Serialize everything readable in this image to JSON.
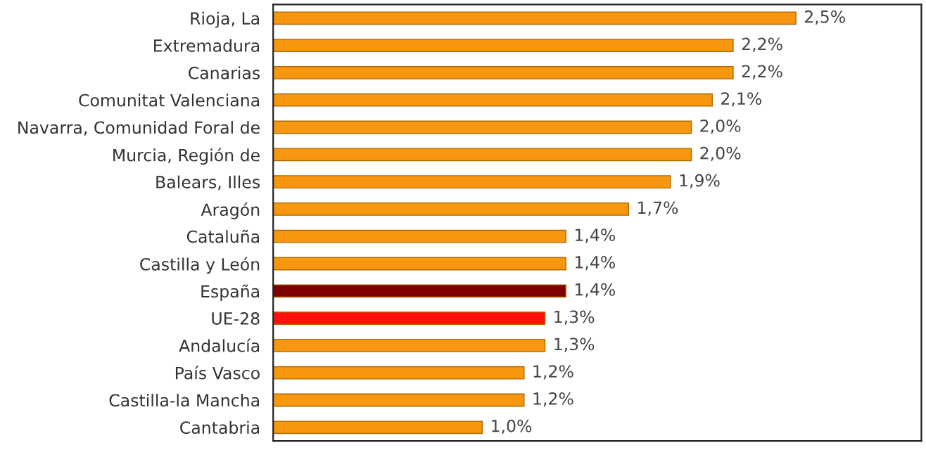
{
  "chart_data": {
    "type": "bar",
    "orientation": "horizontal",
    "categories": [
      "Rioja, La",
      "Extremadura",
      "Canarias",
      "Comunitat Valenciana",
      "Navarra, Comunidad Foral de",
      "Murcia, Región de",
      "Balears, Illes",
      "Aragón",
      "Cataluña",
      "Castilla y León",
      "España",
      "UE-28",
      "Andalucía",
      "País Vasco",
      "Castilla-la Mancha",
      "Cantabria"
    ],
    "values": [
      2.5,
      2.2,
      2.2,
      2.1,
      2.0,
      2.0,
      1.9,
      1.7,
      1.4,
      1.4,
      1.4,
      1.3,
      1.3,
      1.2,
      1.2,
      1.0
    ],
    "value_labels": [
      "2,5%",
      "2,2%",
      "2,2%",
      "2,1%",
      "2,0%",
      "2,0%",
      "1,9%",
      "1,7%",
      "1,4%",
      "1,4%",
      "1,4%",
      "1,3%",
      "1,3%",
      "1,2%",
      "1,2%",
      "1,0%"
    ],
    "colors": [
      "#f7960f",
      "#f7960f",
      "#f7960f",
      "#f7960f",
      "#f7960f",
      "#f7960f",
      "#f7960f",
      "#f7960f",
      "#f7960f",
      "#f7960f",
      "#7f0000",
      "#ff1010",
      "#f7960f",
      "#f7960f",
      "#f7960f",
      "#f7960f"
    ],
    "xlim": [
      0,
      3.1
    ],
    "tick_labels": "y",
    "grid": false,
    "legend": false
  }
}
